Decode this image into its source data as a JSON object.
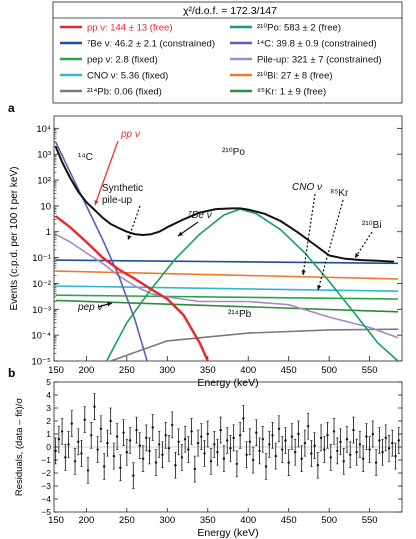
{
  "chart_data": [
    {
      "type": "line",
      "panel_label": "a",
      "fit_stat": "χ²/d.o.f. = 172.3/147",
      "xlabel": "Energy (keV)",
      "ylabel": "Events (c.p.d. per 100 t per keV)",
      "log_y": true,
      "xlim": [
        160,
        590
      ],
      "ylim": [
        1e-05,
        30000.0
      ],
      "x_ticks": [
        "150",
        "200",
        "250",
        "300",
        "350",
        "400",
        "450",
        "500",
        "550"
      ],
      "y_ticks": [
        "10⁴",
        "10³",
        "10²",
        "10",
        "1",
        "10⁻¹",
        "10⁻²",
        "10⁻³",
        "10⁻⁴",
        "10⁻⁵"
      ],
      "legend": [
        {
          "name": "pp ν: 144 ± 13 (free)",
          "color": "#e8262b"
        },
        {
          "name": "⁷Be ν: 46.2 ± 2.1 (constrained)",
          "color": "#1f4e9c"
        },
        {
          "name": "pep ν: 2.8 (fixed)",
          "color": "#2aa44a"
        },
        {
          "name": "CNO ν: 5.36 (fixed)",
          "color": "#31b7d4"
        },
        {
          "name": "²¹⁴Pb: 0.06 (fixed)",
          "color": "#7a7a7a"
        },
        {
          "name": "²¹⁰Po: 583 ± 2 (free)",
          "color": "#1aa05a"
        },
        {
          "name": "¹⁴C: 39.8 ± 0.9 (constrained)",
          "color": "#5e5fb3"
        },
        {
          "name": "Pile-up: 321 ± 7 (constrained)",
          "color": "#a788c8"
        },
        {
          "name": "²¹⁰Bi: 27 ± 8 (free)",
          "color": "#f07a28"
        },
        {
          "name": "⁸⁵Kr: 1 ± 9 (free)",
          "color": "#2e8b3a"
        }
      ],
      "annotations": [
        "pp ν",
        "¹⁴C",
        "Synthetic pile-up",
        "⁷Be ν",
        "²¹⁰Po",
        "CNO ν",
        "⁸⁵Kr",
        "²¹⁰Bi",
        "pep ν",
        "²¹⁴Pb"
      ],
      "series": [
        {
          "name": "data",
          "x": [
            162,
            170,
            180,
            190,
            200,
            210,
            220,
            230,
            240,
            250,
            260,
            270,
            280,
            290,
            300,
            320,
            340,
            360,
            380,
            390,
            400,
            420,
            440,
            460,
            480,
            500,
            520,
            540,
            560,
            580
          ],
          "y": [
            2000,
            500,
            120,
            35,
            14,
            7,
            3.5,
            2,
            1.4,
            1,
            0.8,
            0.75,
            0.8,
            1,
            1.5,
            3,
            5.5,
            7.5,
            8,
            8,
            7.2,
            5,
            2.6,
            1,
            0.35,
            0.12,
            0.09,
            0.08,
            0.075,
            0.07
          ]
        },
        {
          "name": "pp ν",
          "x": [
            162,
            180,
            200,
            220,
            240,
            260,
            280,
            300,
            320,
            340,
            350
          ],
          "y": [
            4,
            1.5,
            0.4,
            0.1,
            0.035,
            0.015,
            0.006,
            0.0025,
            0.0006,
            5e-05,
            1e-05
          ]
        },
        {
          "name": "¹⁴C",
          "x": [
            162,
            180,
            200,
            220,
            240,
            260,
            275
          ],
          "y": [
            3000,
            200,
            10,
            0.5,
            0.02,
            0.0004,
            1e-05
          ]
        },
        {
          "name": "Pile-up",
          "x": [
            162,
            180,
            200,
            220,
            240,
            260,
            280,
            300,
            340,
            400,
            450,
            500,
            550,
            585
          ],
          "y": [
            0.8,
            0.4,
            0.15,
            0.06,
            0.02,
            0.008,
            0.004,
            0.003,
            0.002,
            0.002,
            0.0015,
            0.0005,
            0.0002,
            8e-05
          ]
        },
        {
          "name": "²¹⁰Po",
          "x": [
            225,
            250,
            280,
            310,
            340,
            370,
            390,
            410,
            440,
            470,
            500,
            530,
            560,
            585
          ],
          "y": [
            1e-05,
            0.0003,
            0.006,
            0.09,
            0.8,
            4.5,
            7.5,
            5,
            1.2,
            0.15,
            0.012,
            0.0008,
            5e-05,
            1e-05
          ]
        },
        {
          "name": "⁷Be ν",
          "x": [
            162,
            585
          ],
          "y": [
            0.08,
            0.06
          ]
        },
        {
          "name": "²¹⁰Bi",
          "x": [
            162,
            585
          ],
          "y": [
            0.03,
            0.015
          ]
        },
        {
          "name": "CNO ν",
          "x": [
            162,
            585
          ],
          "y": [
            0.008,
            0.005
          ]
        },
        {
          "name": "pep ν",
          "x": [
            162,
            585
          ],
          "y": [
            0.0035,
            0.0025
          ]
        },
        {
          "name": "⁸⁵Kr",
          "x": [
            162,
            585
          ],
          "y": [
            0.0022,
            0.0008
          ]
        },
        {
          "name": "²¹⁴Pb",
          "x": [
            230,
            300,
            400,
            500,
            585
          ],
          "y": [
            1e-05,
            6e-05,
            0.00012,
            0.00016,
            0.00017
          ]
        }
      ]
    },
    {
      "type": "scatter",
      "panel_label": "b",
      "xlabel": "Energy (keV)",
      "ylabel": "Residuals, (data – fit)/σ",
      "xlim": [
        160,
        590
      ],
      "ylim": [
        -5,
        5
      ],
      "x_ticks": [
        "150",
        "200",
        "250",
        "300",
        "350",
        "400",
        "450",
        "500",
        "550"
      ],
      "y_ticks": [
        "5",
        "4",
        "3",
        "2",
        "1",
        "0",
        "−1",
        "−2",
        "−3",
        "−4",
        "−5"
      ],
      "series": [
        {
          "name": "residuals",
          "x": [
            162,
            166,
            170,
            174,
            178,
            182,
            186,
            190,
            194,
            198,
            202,
            206,
            210,
            214,
            218,
            222,
            226,
            230,
            234,
            238,
            242,
            246,
            250,
            254,
            258,
            262,
            266,
            270,
            274,
            278,
            282,
            286,
            290,
            294,
            298,
            302,
            306,
            310,
            314,
            318,
            322,
            326,
            330,
            334,
            338,
            342,
            346,
            350,
            354,
            358,
            362,
            366,
            370,
            374,
            378,
            382,
            386,
            390,
            394,
            398,
            402,
            406,
            410,
            414,
            418,
            422,
            426,
            430,
            434,
            438,
            442,
            446,
            450,
            454,
            458,
            462,
            466,
            470,
            474,
            478,
            482,
            486,
            490,
            494,
            498,
            502,
            506,
            510,
            514,
            518,
            522,
            526,
            530,
            534,
            538,
            542,
            546,
            550,
            554,
            558,
            562,
            566,
            570,
            574,
            578,
            582,
            586
          ],
          "y": [
            -0.3,
            0.6,
            1.2,
            -0.8,
            0.2,
            1.8,
            -1.1,
            0.4,
            -0.5,
            2.1,
            -1.8,
            0.9,
            3.1,
            -0.2,
            1.4,
            -1.5,
            0.3,
            2.0,
            -0.7,
            0.8,
            -1.6,
            1.1,
            -0.4,
            0.5,
            -2.2,
            1.3,
            0.1,
            -0.9,
            0.7,
            -0.3,
            1.5,
            -1.2,
            0.2,
            -0.6,
            0.9,
            -0.1,
            1.7,
            -1.4,
            0.4,
            -0.8,
            0.6,
            -0.2,
            1.2,
            -1.7,
            0.3,
            0.8,
            -0.5,
            1.0,
            -1.1,
            0.2,
            -0.4,
            1.3,
            -0.9,
            0.5,
            -0.1,
            0.7,
            -1.3,
            0.9,
            2.2,
            -0.6,
            0.4,
            -1.0,
            1.1,
            -0.3,
            0.6,
            -1.5,
            0.2,
            0.9,
            -0.7,
            1.4,
            -0.2,
            0.5,
            -1.2,
            0.8,
            -0.4,
            1.0,
            -0.9,
            0.3,
            1.6,
            -0.5,
            0.1,
            -1.4,
            0.7,
            -0.2,
            0.9,
            -0.8,
            1.2,
            -0.3,
            0.4,
            -1.1,
            0.6,
            -0.6,
            1.3,
            -0.4,
            0.2,
            -0.9,
            0.8,
            -0.2,
            1.0,
            -1.2,
            0.5,
            -0.4,
            0.7,
            -0.1,
            0.3,
            -0.7,
            0.5
          ]
        }
      ]
    }
  ]
}
